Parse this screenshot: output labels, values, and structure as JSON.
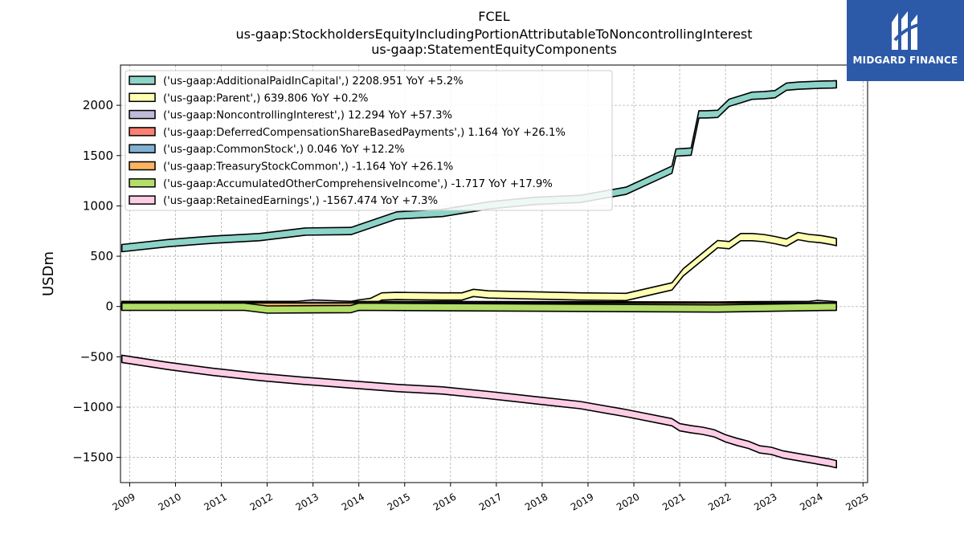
{
  "header": {
    "title_line1": "FCEL",
    "title_line2": "us-gaap:StockholdersEquityIncludingPortionAttributableToNoncontrollingInterest",
    "title_line3": "us-gaap:StatementEquityComponents"
  },
  "brand": {
    "name": "MIDGARD FINANCE",
    "logo_icon": "midgard-logo-icon",
    "background": "#2c5aa8"
  },
  "chart_data": {
    "type": "area",
    "ylabel": "USDm",
    "xlabel": "",
    "xlim": [
      2008.8,
      2025.1
    ],
    "ylim": [
      -1750,
      2400
    ],
    "x_ticks": [
      2009,
      2010,
      2011,
      2012,
      2013,
      2014,
      2015,
      2016,
      2017,
      2018,
      2019,
      2020,
      2021,
      2022,
      2023,
      2024,
      2025
    ],
    "y_ticks": [
      -1500,
      -1000,
      -500,
      0,
      500,
      1000,
      1500,
      2000
    ],
    "y_tick_labels": [
      "−1500",
      "−1000",
      "−500",
      "0",
      "500",
      "1000",
      "1500",
      "2000"
    ],
    "grid": true,
    "legend_position": "top-left",
    "series": [
      {
        "name": "('us-gaap:AdditionalPaidInCapital',) 2208.951 YoY +5.2%",
        "color": "#8dd3c7",
        "x": [
          2008.83,
          2009.83,
          2010.83,
          2011.83,
          2012.83,
          2013.83,
          2014.83,
          2015.83,
          2016.83,
          2017.83,
          2018.83,
          2019.83,
          2020.83,
          2020.92,
          2021.08,
          2021.25,
          2021.42,
          2021.58,
          2021.83,
          2022.08,
          2022.33,
          2022.58,
          2022.83,
          2023.08,
          2023.33,
          2023.58,
          2023.83,
          2024.08,
          2024.33,
          2024.42
        ],
        "values": [
          580,
          630,
          665,
          690,
          745,
          750,
          905,
          930,
          1005,
          1050,
          1070,
          1150,
          1360,
          1530,
          1535,
          1540,
          1910,
          1910,
          1915,
          2025,
          2060,
          2095,
          2100,
          2110,
          2185,
          2195,
          2200,
          2205,
          2207,
          2209
        ]
      },
      {
        "name": "('us-gaap:Parent',) 639.806 YoY +0.2%",
        "color": "#ffffb3",
        "x": [
          2008.83,
          2013.83,
          2014.0,
          2014.25,
          2014.5,
          2014.83,
          2015.83,
          2016.25,
          2016.5,
          2016.83,
          2017.83,
          2018.83,
          2019.83,
          2020.83,
          2021.08,
          2021.83,
          2022.08,
          2022.33,
          2022.58,
          2022.83,
          2023.08,
          2023.33,
          2023.58,
          2023.83,
          2024.08,
          2024.33,
          2024.42
        ],
        "values": [
          15,
          15,
          30,
          45,
          100,
          105,
          100,
          100,
          135,
          120,
          110,
          100,
          95,
          200,
          340,
          620,
          610,
          690,
          690,
          680,
          660,
          635,
          700,
          680,
          670,
          650,
          640
        ]
      },
      {
        "name": "('us-gaap:NoncontrollingInterest',) 12.294 YoY +57.3%",
        "color": "#bebada",
        "x": [
          2008.83,
          2012.5,
          2013.0,
          2013.83,
          2021.83,
          2022.33,
          2023.83,
          2024.0,
          2024.42
        ],
        "values": [
          5,
          10,
          30,
          15,
          10,
          12,
          15,
          25,
          12
        ]
      },
      {
        "name": "('us-gaap:DeferredCompensationShareBasedPayments',) 1.164 YoY +26.1%",
        "color": "#fb8072",
        "x": [
          2008.83,
          2024.42
        ],
        "values": [
          1,
          1.164
        ]
      },
      {
        "name": "('us-gaap:CommonStock',) 0.046 YoY +12.2%",
        "color": "#80b1d3",
        "x": [
          2008.83,
          2024.42
        ],
        "values": [
          0.04,
          0.046
        ]
      },
      {
        "name": "('us-gaap:TreasuryStockCommon',) -1.164 YoY +26.1%",
        "color": "#fdb462",
        "x": [
          2008.83,
          2024.42
        ],
        "values": [
          -1,
          -1.164
        ]
      },
      {
        "name": "('us-gaap:AccumulatedOtherComprehensiveIncome',) -1.717 YoY +17.9%",
        "color": "#b3de69",
        "x": [
          2008.83,
          2011.5,
          2012.0,
          2013.83,
          2014.0,
          2021.83,
          2024.42
        ],
        "values": [
          -2,
          -2,
          -30,
          -25,
          -2,
          -20,
          -1.717
        ]
      },
      {
        "name": "('us-gaap:RetainedEarnings',) -1567.474 YoY +7.3%",
        "color": "#fccde5",
        "x": [
          2008.83,
          2009.83,
          2010.83,
          2011.83,
          2012.83,
          2013.83,
          2014.83,
          2015.83,
          2016.83,
          2017.83,
          2018.83,
          2019.83,
          2020.83,
          2021.0,
          2021.25,
          2021.5,
          2021.75,
          2022.0,
          2022.25,
          2022.5,
          2022.75,
          2023.0,
          2023.25,
          2023.5,
          2023.75,
          2024.0,
          2024.25,
          2024.42
        ],
        "values": [
          -520,
          -590,
          -650,
          -700,
          -740,
          -775,
          -810,
          -835,
          -880,
          -930,
          -980,
          -1060,
          -1150,
          -1200,
          -1220,
          -1235,
          -1260,
          -1310,
          -1345,
          -1375,
          -1420,
          -1435,
          -1470,
          -1490,
          -1510,
          -1530,
          -1550,
          -1567
        ]
      }
    ]
  }
}
